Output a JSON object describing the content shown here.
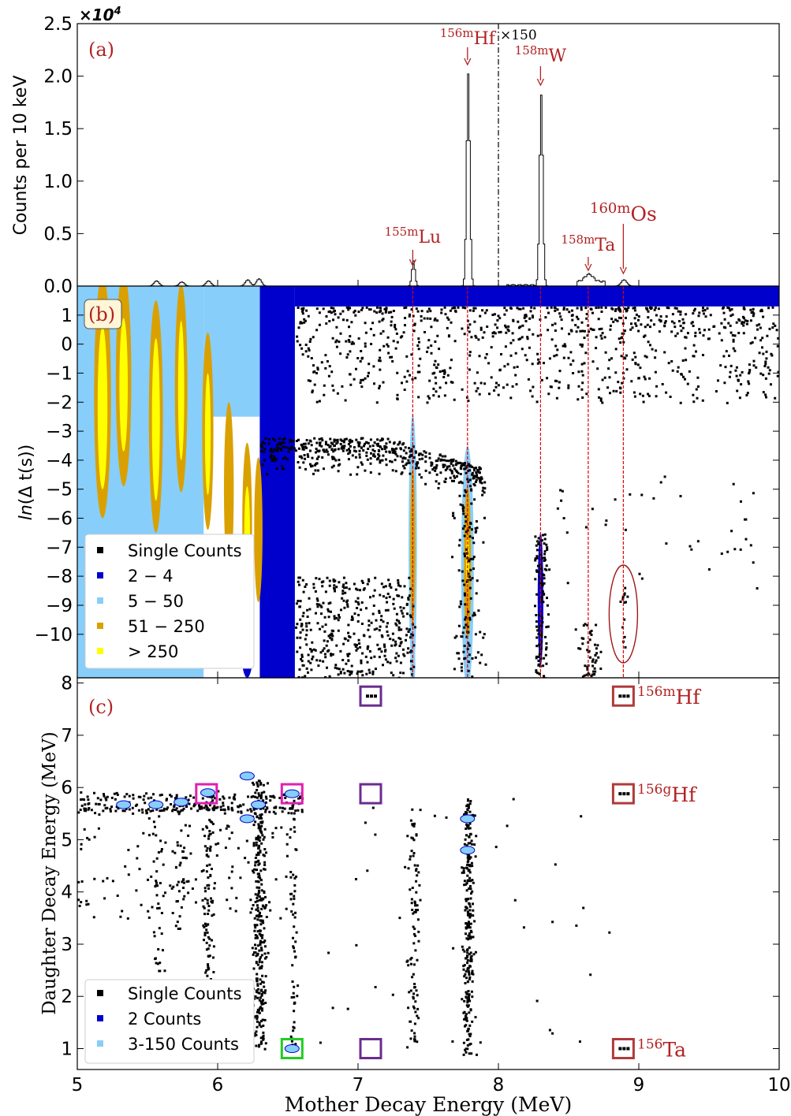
{
  "figure": {
    "shared_xlabel": "Mother Decay Energy (MeV)",
    "shared_xticks": [
      "5",
      "6",
      "7",
      "8",
      "9",
      "10"
    ],
    "text_color": "#b22222"
  },
  "chart_data": [
    {
      "type": "line",
      "panel_label": "(a)",
      "ylabel": "Counts per 10 keV",
      "y_multiplier": "×10",
      "y_multiplier_exp": "4",
      "xlim": [
        5,
        10
      ],
      "ylim": [
        0,
        2.5
      ],
      "yticks": [
        "0.0",
        "0.5",
        "1.0",
        "1.5",
        "2.0",
        "2.5"
      ],
      "scale_marker": {
        "x": 8.0,
        "label": "×150"
      },
      "peaks": [
        {
          "iso_mass": "155m",
          "iso_sym": "Lu",
          "x": 7.39,
          "height": 0.24
        },
        {
          "iso_mass": "156m",
          "iso_sym": "Hf",
          "x": 7.78,
          "height": 2.02
        },
        {
          "iso_mass": "158m",
          "iso_sym": "W",
          "x": 8.3,
          "height": 1.82
        },
        {
          "iso_mass": "158m",
          "iso_sym": "Ta",
          "x": 8.64,
          "height": 0.07
        },
        {
          "iso_mass": "160m",
          "iso_sym": "Os",
          "x": 8.89,
          "height": 0.06
        }
      ],
      "low_energy_bumps": [
        {
          "x": 5.56,
          "height": 0.05
        },
        {
          "x": 5.74,
          "height": 0.04
        },
        {
          "x": 5.93,
          "height": 0.05
        },
        {
          "x": 6.21,
          "height": 0.06
        },
        {
          "x": 6.29,
          "height": 0.07
        }
      ]
    },
    {
      "type": "heatmap",
      "panel_label": "(b)",
      "ylabel_italic": "ln",
      "ylabel_rest": "(Δ t(s))",
      "xlim": [
        5,
        10
      ],
      "ylim": [
        -11.5,
        2
      ],
      "yticks": [
        "1",
        "0",
        "−1",
        "−2",
        "−3",
        "−4",
        "−5",
        "−6",
        "−7",
        "−8",
        "−9",
        "−10"
      ],
      "legend": [
        "Single Counts",
        "2 − 4",
        "5 − 50",
        "51 − 250",
        " > 250"
      ],
      "colors": [
        "#000000",
        "#0000cd",
        "#87cefa",
        "#daa000",
        "#ffff00"
      ],
      "guide_lines_x": [
        7.39,
        7.78,
        8.3,
        8.64,
        8.89
      ],
      "highlight_ellipse": {
        "x": 8.89,
        "y": -9.3
      }
    },
    {
      "type": "heatmap",
      "panel_label": "(c)",
      "ylabel": "Daughter Decay Energy (MeV)",
      "xlim": [
        5,
        10
      ],
      "ylim": [
        0.6,
        8.1
      ],
      "yticks": [
        "1",
        "2",
        "3",
        "4",
        "5",
        "6",
        "7",
        "8"
      ],
      "legend": [
        "Single Counts",
        "2 Counts",
        "3-150 Counts"
      ],
      "colors": [
        "#000000",
        "#0000cd",
        "#87cefa"
      ],
      "right_labels": [
        {
          "iso_mass": "156m",
          "iso_sym": "Hf",
          "y": 7.75
        },
        {
          "iso_mass": "156g",
          "iso_sym": "Hf",
          "y": 5.88
        },
        {
          "iso_mass": "156",
          "iso_sym": "Ta",
          "y": 1.0
        }
      ],
      "boxes": [
        {
          "x": 5.92,
          "y": 5.88,
          "color": "#e020b0"
        },
        {
          "x": 6.53,
          "y": 5.88,
          "color": "#e020b0"
        },
        {
          "x": 7.09,
          "y": 7.75,
          "color": "#6a2c91"
        },
        {
          "x": 7.09,
          "y": 5.88,
          "color": "#6a2c91"
        },
        {
          "x": 7.09,
          "y": 1.0,
          "color": "#6a2c91"
        },
        {
          "x": 6.53,
          "y": 1.0,
          "color": "#22cc22"
        },
        {
          "x": 8.89,
          "y": 7.75,
          "color": "#b03a3a"
        },
        {
          "x": 8.89,
          "y": 5.88,
          "color": "#b03a3a"
        },
        {
          "x": 8.89,
          "y": 1.0,
          "color": "#b03a3a"
        }
      ]
    }
  ]
}
